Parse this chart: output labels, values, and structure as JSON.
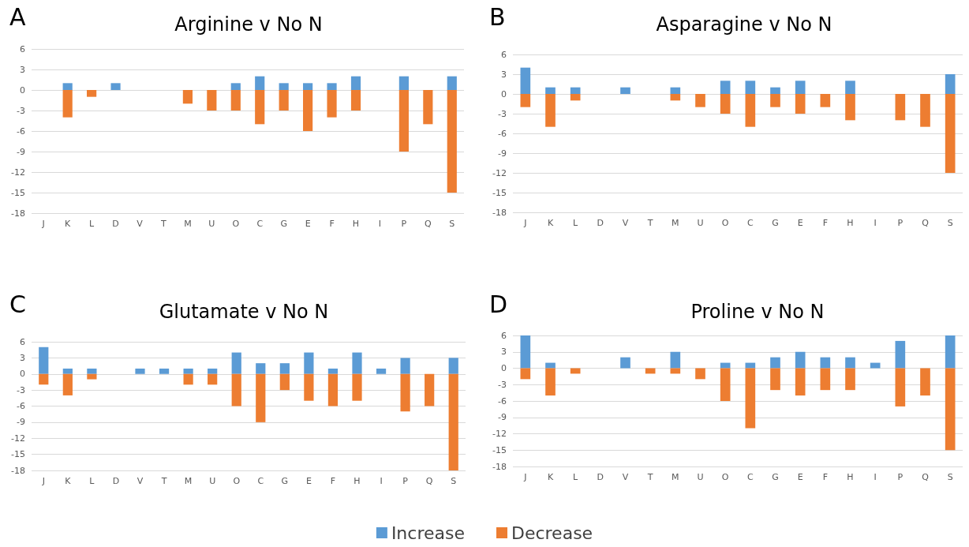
{
  "chart_data": [
    {
      "type": "bar",
      "title": "Arginine v No N",
      "annotations": [
        "A"
      ],
      "categories": [
        "J",
        "K",
        "L",
        "D",
        "V",
        "T",
        "M",
        "U",
        "O",
        "C",
        "G",
        "E",
        "F",
        "H",
        "I",
        "P",
        "Q",
        "S"
      ],
      "stacked": true,
      "grid": "y",
      "legend": "bottom",
      "ylim": [
        -18,
        6
      ],
      "yticks": [
        -18,
        -15,
        -12,
        -9,
        -6,
        -3,
        0,
        3,
        6
      ],
      "series": [
        {
          "name": "Increase",
          "color": "#5b9bd5",
          "values": [
            0,
            1,
            0,
            1,
            0,
            0,
            0,
            0,
            1,
            2,
            1,
            1,
            1,
            2,
            0,
            2,
            0,
            2
          ]
        },
        {
          "name": "Decrease",
          "color": "#ed7d31",
          "values": [
            0,
            -4,
            -1,
            0,
            0,
            0,
            -2,
            -3,
            -3,
            -5,
            -3,
            -6,
            -4,
            -3,
            0,
            -9,
            -5,
            -15
          ]
        }
      ]
    },
    {
      "type": "bar",
      "title": "Asparagine v No N",
      "annotations": [
        "B"
      ],
      "categories": [
        "J",
        "K",
        "L",
        "D",
        "V",
        "T",
        "M",
        "U",
        "O",
        "C",
        "G",
        "E",
        "F",
        "H",
        "I",
        "P",
        "Q",
        "S"
      ],
      "stacked": true,
      "grid": "y",
      "legend": "bottom",
      "ylim": [
        -18,
        6
      ],
      "yticks": [
        -18,
        -15,
        -12,
        -9,
        -6,
        -3,
        0,
        3,
        6
      ],
      "series": [
        {
          "name": "Increase",
          "color": "#5b9bd5",
          "values": [
            4,
            1,
            1,
            0,
            1,
            0,
            1,
            0,
            2,
            2,
            1,
            2,
            0,
            2,
            0,
            0,
            0,
            3
          ]
        },
        {
          "name": "Decrease",
          "color": "#ed7d31",
          "values": [
            -2,
            -5,
            -1,
            0,
            0,
            0,
            -1,
            -2,
            -3,
            -5,
            -2,
            -3,
            -2,
            -4,
            0,
            -4,
            -5,
            -12
          ]
        }
      ]
    },
    {
      "type": "bar",
      "title": "Glutamate v No N",
      "annotations": [
        "C"
      ],
      "categories": [
        "J",
        "K",
        "L",
        "D",
        "V",
        "T",
        "M",
        "U",
        "O",
        "C",
        "G",
        "E",
        "F",
        "H",
        "I",
        "P",
        "Q",
        "S"
      ],
      "stacked": true,
      "grid": "y",
      "legend": "bottom",
      "ylim": [
        -18,
        6
      ],
      "yticks": [
        -18,
        -15,
        -12,
        -9,
        -6,
        -3,
        0,
        3,
        6
      ],
      "series": [
        {
          "name": "Increase",
          "color": "#5b9bd5",
          "values": [
            5,
            1,
            1,
            0,
            1,
            1,
            1,
            1,
            4,
            2,
            2,
            4,
            1,
            4,
            1,
            3,
            0,
            3
          ]
        },
        {
          "name": "Decrease",
          "color": "#ed7d31",
          "values": [
            -2,
            -4,
            -1,
            0,
            0,
            0,
            -2,
            -2,
            -6,
            -9,
            -3,
            -5,
            -6,
            -5,
            0,
            -7,
            -6,
            -18
          ]
        }
      ]
    },
    {
      "type": "bar",
      "title": "Proline v No N",
      "annotations": [
        "D"
      ],
      "categories": [
        "J",
        "K",
        "L",
        "D",
        "V",
        "T",
        "M",
        "U",
        "O",
        "C",
        "G",
        "E",
        "F",
        "H",
        "I",
        "P",
        "Q",
        "S"
      ],
      "stacked": true,
      "grid": "y",
      "legend": "bottom",
      "ylim": [
        -18,
        6
      ],
      "yticks": [
        -18,
        -15,
        -12,
        -9,
        -6,
        -3,
        0,
        3,
        6
      ],
      "series": [
        {
          "name": "Increase",
          "color": "#5b9bd5",
          "values": [
            6,
            1,
            0,
            0,
            2,
            0,
            3,
            0,
            1,
            1,
            2,
            3,
            2,
            2,
            1,
            5,
            0,
            6
          ]
        },
        {
          "name": "Decrease",
          "color": "#ed7d31",
          "values": [
            -2,
            -5,
            -1,
            0,
            0,
            -1,
            -1,
            -2,
            -6,
            -11,
            -4,
            -5,
            -4,
            -4,
            0,
            -7,
            -5,
            -15
          ]
        }
      ]
    }
  ]
}
